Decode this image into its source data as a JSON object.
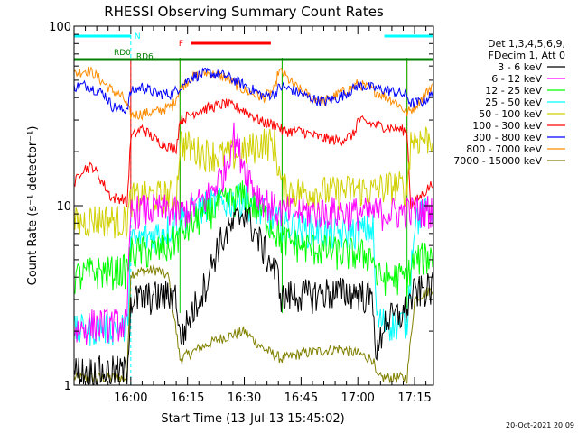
{
  "chart_data": {
    "type": "line",
    "title": "RHESSI Observing Summary Count Rates",
    "xlabel": "Start Time (13-Jul-13 15:45:02)",
    "ylabel": "Count Rate (s⁻¹ detector⁻¹)",
    "yscale": "log",
    "ylim": [
      1,
      100
    ],
    "xlim": [
      "15:45:02",
      "17:25:00"
    ],
    "x_ticks": [
      "16:00",
      "16:15",
      "16:30",
      "16:45",
      "17:00",
      "17:15"
    ],
    "x_tick_minutes": [
      15,
      30,
      45,
      60,
      75,
      90
    ],
    "y_tick_labels": [
      "1",
      "10",
      "100"
    ],
    "y_tick_values": [
      1,
      10,
      100
    ],
    "legend": {
      "placement": "right",
      "header_lines": [
        "Det 1,3,4,5,6,9,",
        "FDecim 1, Att 0"
      ]
    },
    "series": [
      {
        "name": "3 - 6 keV",
        "color": "#000000",
        "x": [
          0,
          5,
          10,
          14,
          15,
          20,
          27,
          28,
          31,
          35,
          38,
          45,
          48,
          54,
          55,
          57,
          60,
          63,
          67,
          75,
          79,
          80,
          82,
          87,
          90,
          95
        ],
        "y": [
          1.2,
          1.2,
          1.2,
          1.2,
          3.0,
          3.1,
          3.2,
          1.8,
          2.5,
          3.8,
          6.0,
          9.5,
          7.0,
          4.0,
          3.0,
          3.2,
          3.2,
          3.2,
          3.3,
          3.3,
          3.0,
          1.4,
          2.3,
          2.5,
          3.3,
          3.5
        ]
      },
      {
        "name": "6 - 12 keV",
        "color": "#ff00ff",
        "x": [
          0,
          5,
          10,
          14,
          15,
          18,
          25,
          28,
          35,
          40,
          42,
          45,
          48,
          53,
          55,
          60,
          75,
          78,
          85,
          88,
          93,
          95
        ],
        "y": [
          2.0,
          2.2,
          2.2,
          2.2,
          9.3,
          9.5,
          9.6,
          9.0,
          11.0,
          16.0,
          25.0,
          17.0,
          12.0,
          9.6,
          9.3,
          9.3,
          9.2,
          9.2,
          9.2,
          9.3,
          9.5,
          9.5
        ]
      },
      {
        "name": "12 - 25 keV",
        "color": "#00ff00",
        "x": [
          0,
          5,
          10,
          14,
          15,
          20,
          25,
          28,
          33,
          38,
          45,
          50,
          55,
          60,
          70,
          75,
          79,
          80,
          85,
          88,
          90,
          95
        ],
        "y": [
          4.0,
          4.3,
          4.3,
          4.4,
          5.5,
          5.6,
          5.8,
          7.0,
          8.5,
          10.0,
          11.5,
          9.0,
          6.5,
          6.0,
          5.5,
          5.4,
          5.3,
          4.0,
          4.0,
          4.0,
          5.0,
          5.3
        ]
      },
      {
        "name": "25 - 50 keV",
        "color": "#00ffff",
        "x": [
          0,
          5,
          10,
          14,
          15,
          20,
          25,
          28,
          35,
          40,
          45,
          50,
          55,
          60,
          70,
          75,
          79,
          80,
          85,
          88,
          90,
          95
        ],
        "y": [
          2.0,
          2.1,
          2.1,
          2.1,
          6.2,
          6.8,
          7.5,
          8.5,
          10.0,
          10.5,
          11.0,
          9.0,
          8.0,
          7.5,
          7.0,
          7.2,
          7.5,
          2.3,
          2.2,
          2.3,
          8.5,
          9.5
        ]
      },
      {
        "name": "50 - 100 keV",
        "color": "#d0d000",
        "x": [
          0,
          5,
          10,
          14,
          15,
          18,
          25,
          27,
          28,
          33,
          40,
          45,
          50,
          53,
          55,
          60,
          70,
          75,
          79,
          80,
          85,
          88,
          89,
          95
        ],
        "y": [
          8.0,
          8.5,
          8.4,
          8.2,
          11.0,
          11.2,
          11.5,
          11.0,
          23.0,
          20.0,
          19.0,
          20.0,
          23.0,
          22.0,
          12.5,
          12.0,
          12.0,
          12.5,
          12.0,
          12.5,
          13.0,
          12.5,
          23.5,
          24.0
        ]
      },
      {
        "name": "100 - 300 keV",
        "color": "#ff0000",
        "x": [
          0,
          2,
          5,
          8,
          10,
          13,
          14,
          15,
          18,
          22,
          26,
          27,
          28,
          33,
          40,
          45,
          50,
          54,
          55,
          60,
          65,
          70,
          74,
          75,
          80,
          85,
          88,
          89,
          92,
          95
        ],
        "y": [
          13.0,
          16.0,
          16.5,
          13.0,
          11.0,
          11.0,
          10.0,
          24.0,
          27.0,
          23.0,
          21.0,
          21.0,
          30.0,
          34.0,
          37.0,
          34.0,
          29.0,
          28.0,
          26.0,
          26.0,
          24.0,
          23.0,
          25.0,
          30.0,
          28.0,
          27.0,
          26.0,
          10.0,
          11.5,
          13.5
        ]
      },
      {
        "name": "300 - 800 keV",
        "color": "#0000ff",
        "x": [
          0,
          3,
          5,
          8,
          10,
          13,
          14,
          15,
          18,
          22,
          26,
          27,
          28,
          31,
          35,
          40,
          45,
          50,
          53,
          54,
          55,
          58,
          62,
          66,
          70,
          74,
          75,
          80,
          85,
          88,
          89,
          92,
          95
        ],
        "y": [
          46.0,
          47.0,
          45.0,
          42.0,
          36.0,
          34.0,
          35.0,
          43.0,
          46.0,
          42.0,
          42.0,
          44.0,
          46.0,
          52.0,
          55.0,
          53.0,
          47.0,
          41.0,
          42.0,
          45.0,
          46.0,
          44.0,
          40.0,
          38.0,
          40.0,
          45.0,
          47.0,
          45.0,
          43.0,
          41.0,
          37.0,
          38.0,
          42.0
        ]
      },
      {
        "name": "800 - 7000 keV",
        "color": "#ff8c00",
        "x": [
          0,
          3,
          5,
          8,
          10,
          13,
          14,
          15,
          18,
          22,
          26,
          28,
          31,
          35,
          40,
          45,
          50,
          53,
          54,
          55,
          58,
          62,
          66,
          70,
          74,
          75,
          80,
          85,
          88,
          89,
          92,
          95
        ],
        "y": [
          54.0,
          57.0,
          55.0,
          48.0,
          44.0,
          40.0,
          36.0,
          32.0,
          32.5,
          33.5,
          36.0,
          45.0,
          52.0,
          55.0,
          52.0,
          44.0,
          40.0,
          44.0,
          56.0,
          55.0,
          47.0,
          41.0,
          38.0,
          42.0,
          46.0,
          48.0,
          43.0,
          38.0,
          33.0,
          34.0,
          40.0,
          48.0
        ]
      },
      {
        "name": "7000 - 15000 keV",
        "color": "#808000",
        "x": [
          0,
          5,
          10,
          14,
          15,
          18,
          22,
          25,
          28,
          33,
          38,
          45,
          50,
          55,
          60,
          70,
          75,
          79,
          80,
          83,
          85,
          88,
          90,
          92,
          95
        ],
        "y": [
          1.1,
          1.1,
          1.1,
          1.1,
          4.2,
          4.3,
          4.4,
          4.0,
          1.4,
          1.6,
          1.8,
          2.0,
          1.6,
          1.4,
          1.5,
          1.6,
          1.5,
          1.4,
          1.1,
          1.1,
          1.1,
          1.1,
          3.0,
          3.2,
          3.5
        ]
      }
    ],
    "state_bars": [
      {
        "label": "N",
        "color": "#00ffff",
        "segments": [
          [
            0,
            15
          ],
          [
            82,
            95
          ]
        ]
      },
      {
        "label": "F",
        "color": "#ff0000",
        "segments": [
          [
            31,
            52
          ]
        ]
      },
      {
        "label": "RD0",
        "color": "#008000",
        "segments": [
          [
            0,
            95
          ]
        ]
      },
      {
        "label": "RD6",
        "color": "#008000",
        "segments": [
          [
            15,
            28
          ]
        ]
      }
    ],
    "tick_marks": {
      "red": [
        15,
        28,
        55,
        88
      ],
      "green": [
        28,
        55,
        88
      ],
      "cyan_dashed": [
        15,
        95
      ]
    },
    "footer": "20-Oct-2021 20:09"
  }
}
